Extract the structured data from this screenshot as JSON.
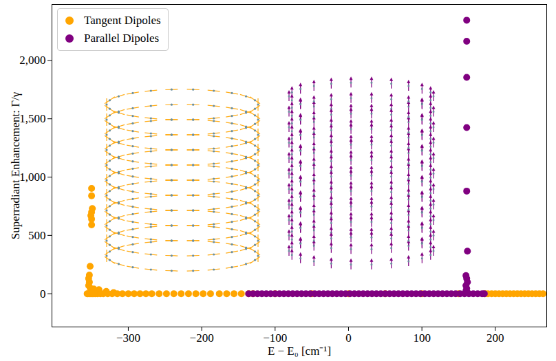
{
  "chart_data": {
    "type": "scatter",
    "x_label": "E − E₀ [cm⁻¹]",
    "y_label": "Superradiant Enhancement: Γ/γ",
    "xlim": [
      -404,
      270
    ],
    "ylim": [
      -285,
      2480
    ],
    "xticks": [
      -300,
      -200,
      -100,
      0,
      100,
      200
    ],
    "yticks": [
      0,
      500,
      1000,
      1500,
      2000
    ],
    "legend": "top-left",
    "series": [
      {
        "name": "Tangent Dipoles",
        "color": "#ffa500",
        "marker": "circle",
        "x": [
          -350,
          -350,
          -349,
          -350,
          -351,
          -350,
          -350,
          -352,
          -353,
          -354,
          -353,
          -354,
          -352,
          -347,
          -340,
          -330,
          -320,
          -356,
          -355,
          -353,
          -351,
          -349,
          -347,
          -345,
          -342,
          -338,
          -334,
          -328,
          -322,
          -315,
          -308,
          -300,
          -292,
          -284,
          -276,
          -268,
          -258,
          -248,
          -238,
          -228,
          -218,
          -208,
          -198,
          -188,
          -176,
          -166,
          -156,
          -146,
          -136,
          -130,
          -100,
          -50,
          0,
          50,
          100,
          150,
          186,
          190,
          195,
          200,
          205,
          210,
          215,
          220,
          225,
          230,
          235,
          240,
          245,
          250,
          255,
          260,
          265
        ],
        "y": [
          903,
          840,
          730,
          700,
          670,
          640,
          590,
          235,
          160,
          130,
          100,
          70,
          50,
          40,
          35,
          20,
          10,
          0,
          0,
          0,
          0,
          0,
          0,
          0,
          0,
          0,
          0,
          0,
          0,
          0,
          0,
          0,
          0,
          0,
          0,
          0,
          0,
          0,
          0,
          0,
          0,
          0,
          0,
          0,
          0,
          0,
          0,
          0,
          0,
          0,
          0,
          0,
          0,
          0,
          0,
          0,
          0,
          0,
          0,
          0,
          0,
          0,
          0,
          0,
          0,
          0,
          0,
          0,
          0,
          0,
          0,
          0,
          0
        ]
      },
      {
        "name": "Parallel Dipoles",
        "color": "#800080",
        "marker": "circle",
        "x": [
          161,
          161,
          161,
          161,
          161,
          162,
          160,
          161,
          162,
          160,
          161,
          160,
          162,
          -136,
          -130,
          -124,
          -118,
          -112,
          -106,
          -100,
          -94,
          -88,
          -82,
          -76,
          -70,
          -64,
          -58,
          -52,
          -46,
          -40,
          -34,
          -28,
          -22,
          -16,
          -10,
          -4,
          2,
          8,
          14,
          20,
          26,
          32,
          38,
          44,
          50,
          56,
          62,
          68,
          74,
          80,
          86,
          92,
          98,
          104,
          110,
          116,
          122,
          128,
          134,
          140,
          146,
          152,
          158,
          164,
          170,
          176,
          182,
          185
        ],
        "y": [
          2345,
          2165,
          1855,
          1425,
          880,
          365,
          155,
          130,
          100,
          70,
          45,
          25,
          10,
          0,
          0,
          0,
          0,
          0,
          0,
          0,
          0,
          0,
          0,
          0,
          0,
          0,
          0,
          0,
          0,
          0,
          0,
          0,
          0,
          0,
          0,
          0,
          0,
          0,
          0,
          0,
          0,
          0,
          0,
          0,
          0,
          0,
          0,
          0,
          0,
          0,
          0,
          0,
          0,
          0,
          0,
          0,
          0,
          0,
          0,
          0,
          0,
          0,
          0,
          0,
          0,
          0,
          0,
          0
        ]
      }
    ]
  }
}
